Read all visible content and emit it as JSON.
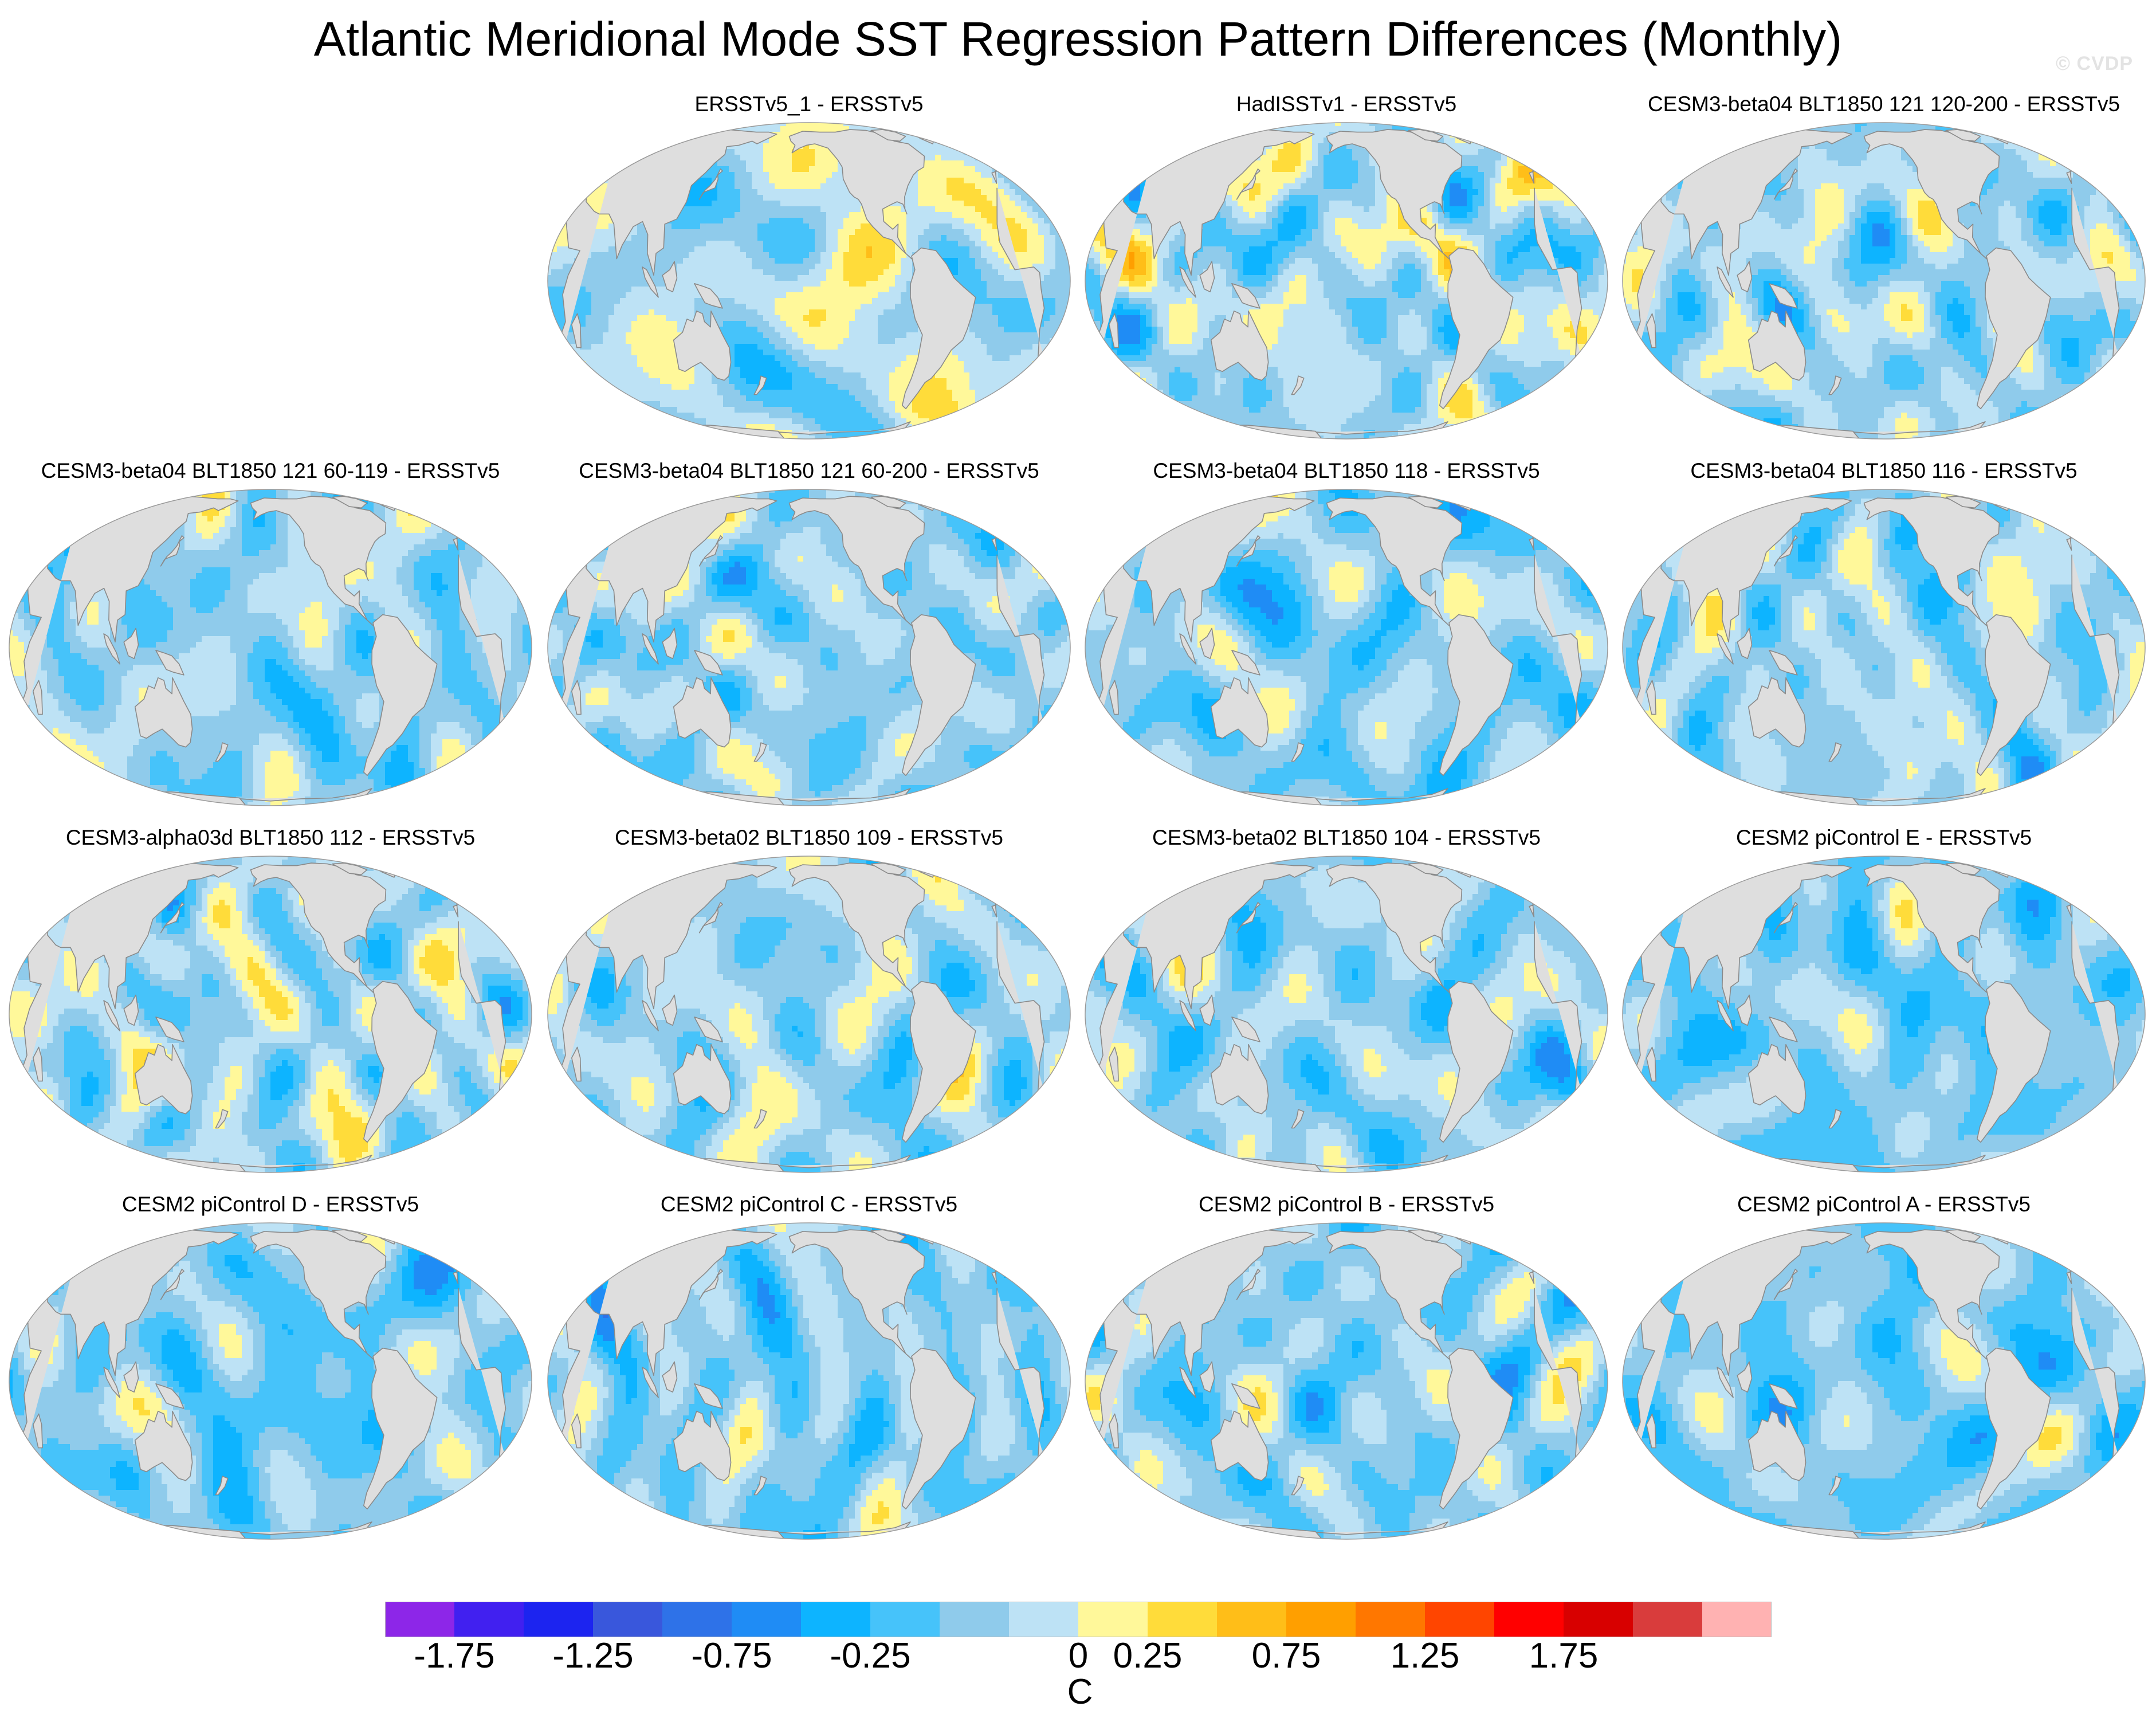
{
  "title": "Atlantic Meridional Mode SST Regression Pattern Differences (Monthly)",
  "watermark": "© CVDP",
  "panels": [
    {
      "title": "ERSSTv5_1 - ERSSTv5",
      "seed": 11,
      "bias": 0.05
    },
    {
      "title": "HadISSTv1 - ERSSTv5",
      "seed": 23,
      "bias": 0.0
    },
    {
      "title": "CESM3-beta04 BLT1850 121 120-200 - ERSSTv5",
      "seed": 37,
      "bias": -0.05
    },
    {
      "title": "CESM3-beta04 BLT1850 121 60-119 - ERSSTv5",
      "seed": 41,
      "bias": -0.1
    },
    {
      "title": "CESM3-beta04 BLT1850 121 60-200 - ERSSTv5",
      "seed": 53,
      "bias": -0.1
    },
    {
      "title": "CESM3-beta04 BLT1850 118 - ERSSTv5",
      "seed": 67,
      "bias": -0.15
    },
    {
      "title": "CESM3-beta04 BLT1850 116 - ERSSTv5",
      "seed": 71,
      "bias": -0.05
    },
    {
      "title": "CESM3-alpha03d BLT1850 112 - ERSSTv5",
      "seed": 83,
      "bias": 0.0
    },
    {
      "title": "CESM3-beta02 BLT1850 109 - ERSSTv5",
      "seed": 97,
      "bias": -0.05
    },
    {
      "title": "CESM3-beta02 BLT1850 104 - ERSSTv5",
      "seed": 101,
      "bias": -0.1
    },
    {
      "title": "CESM2 piControl E - ERSSTv5",
      "seed": 113,
      "bias": -0.2
    },
    {
      "title": "CESM2 piControl D - ERSSTv5",
      "seed": 127,
      "bias": -0.2
    },
    {
      "title": "CESM2 piControl C - ERSSTv5",
      "seed": 131,
      "bias": -0.15
    },
    {
      "title": "CESM2 piControl B - ERSSTv5",
      "seed": 149,
      "bias": -0.15
    },
    {
      "title": "CESM2 piControl A - ERSSTv5",
      "seed": 151,
      "bias": -0.2
    }
  ],
  "colorbar": {
    "unit": "C",
    "levels": [
      -2.0,
      -1.75,
      -1.5,
      -1.25,
      -1.0,
      -0.75,
      -0.5,
      -0.25,
      0.0,
      0.25,
      0.5,
      0.75,
      1.0,
      1.25,
      1.5,
      1.75,
      2.0
    ],
    "tick_labels": [
      "-1.75",
      "-1.25",
      "-0.75",
      "-0.25",
      "0",
      "0.25",
      "0.75",
      "1.25",
      "1.75"
    ],
    "colors": [
      "#8d26e8",
      "#4120f0",
      "#1c24f0",
      "#3957dc",
      "#2e72e8",
      "#1f8cf5",
      "#0db4ff",
      "#46c3fa",
      "#8fcbeb",
      "#bde2f5",
      "#fff89a",
      "#ffdc3a",
      "#ffbe18",
      "#ff9f00",
      "#ff7700",
      "#ff4500",
      "#ff0000",
      "#d80000",
      "#d93c3c",
      "#ffb2b2"
    ]
  },
  "land_color": "#dedede",
  "coast_color": "#8a8a8a"
}
